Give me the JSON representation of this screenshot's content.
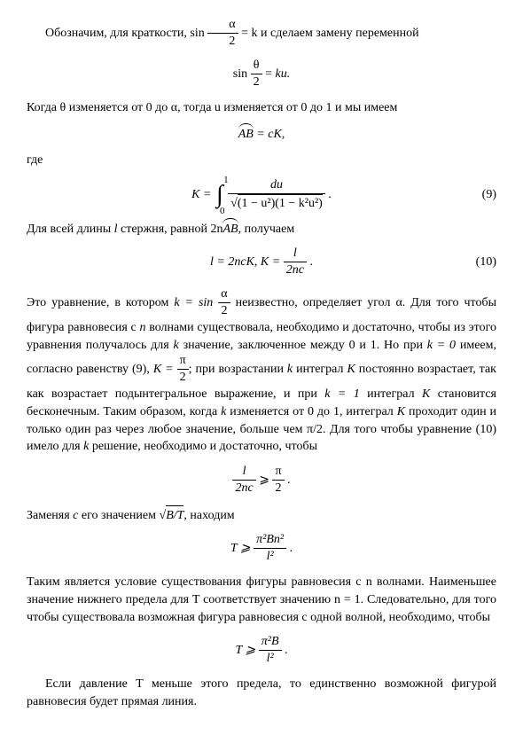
{
  "para1_a": "Обозначим, для краткости,  sin ",
  "para1_b": " и сделаем замену переменной",
  "eq1_lhs_num": "θ",
  "eq1_lhs_den": "2",
  "eq1_rhs": "ku.",
  "eq1_pre": "sin ",
  "eq1_eq": " = ",
  "para2": "Когда θ изменяется от 0 до α, тогда u изменяется от 0 до 1 и мы имеем",
  "eq2_lhs": "AB",
  "eq2_rhs": " = cK,",
  "where": "где",
  "eq3_K": "K = ",
  "eq3_upper": "1",
  "eq3_lower": "0",
  "eq3_num": "du",
  "eq3_den": "(1 − u²)(1 − k²u²)",
  "eq3_num_label": " .",
  "eq3_num_tag": "(9)",
  "para3_a": "Для всей длины ",
  "para3_b": " стержня, равной 2n",
  "para3_c": ", получаем",
  "l": "l",
  "AB": "AB",
  "eq4_a": "l = 2ncK,   K = ",
  "eq4_num": "l",
  "eq4_den": "2nc",
  "eq4_tail": " .",
  "eq4_tag": "(10)",
  "para4_a": "Это уравнение, в котором ",
  "para4_b": " неизвестно, определяет угол α. Для того чтобы фигура равновесия с ",
  "para4_c": " волнами существовала, необходимо и достаточно, чтобы из этого уравнения получалось для ",
  "para4_d": " значение, заклю­ченное между 0 и 1. Но при ",
  "para4_e": " имеем, согласно равенству (9), ",
  "para4_f": "; при возрастании ",
  "para4_g": " интеграл ",
  "para4_h": " постоянно возрастает, так как возрастает подынтегральное выражение, и при ",
  "para4_i": " интеграл ",
  "para4_j": " становится бесконеч­ным. Таким образом, когда ",
  "para4_k": " изменяется от 0 до 1, интеграл ",
  "para4_l": " проходит один и только один раз через любое значение, больше чем π/2. Для того чтобы уравнение (10) имело для ",
  "para4_m": " решение, необходимо и достаточно, чтобы",
  "k_eq_sin": "k = sin ",
  "alpha_over_2_num": "α",
  "alpha_over_2_den": "2",
  "k_eq_sin_post": " = k",
  "n": "n",
  "k": "k",
  "K": "K",
  "k_eq_0": "k = 0",
  "k_eq_1": "k = 1",
  "K_eq_pi2": "K = ",
  "pi": "π",
  "two": "2",
  "eq5_num": "l",
  "eq5_den": "2nc",
  "ge": " ⩾ ",
  "eq5_rhs_num": "π",
  "eq5_rhs_den": "2",
  "eq5_tail": " .",
  "para5_a": "Заменяя ",
  "para5_b": " его значением ",
  "para5_c": ", находим",
  "c": "c",
  "BT": "B/T",
  "eq6_lhs": "T ⩾ ",
  "eq6_num": "π²Bn²",
  "eq6_den": "l²",
  "eq6_tail": " .",
  "para6": "Таким является условие существования фигуры равновесия с n волнами. Наименьшее значение нижнего предела для T соответствует значению n = 1. Следовательно, для того чтобы существовала возможная фигура равновесия с одной волной, необходимо, чтобы",
  "eq7_lhs": "T ⩾ ",
  "eq7_num": "π²B",
  "eq7_den": "l²",
  "eq7_tail": " .",
  "para7": "Если давление T меньше этого предела, то единственно возможной фигурой равновесия будет прямая линия."
}
